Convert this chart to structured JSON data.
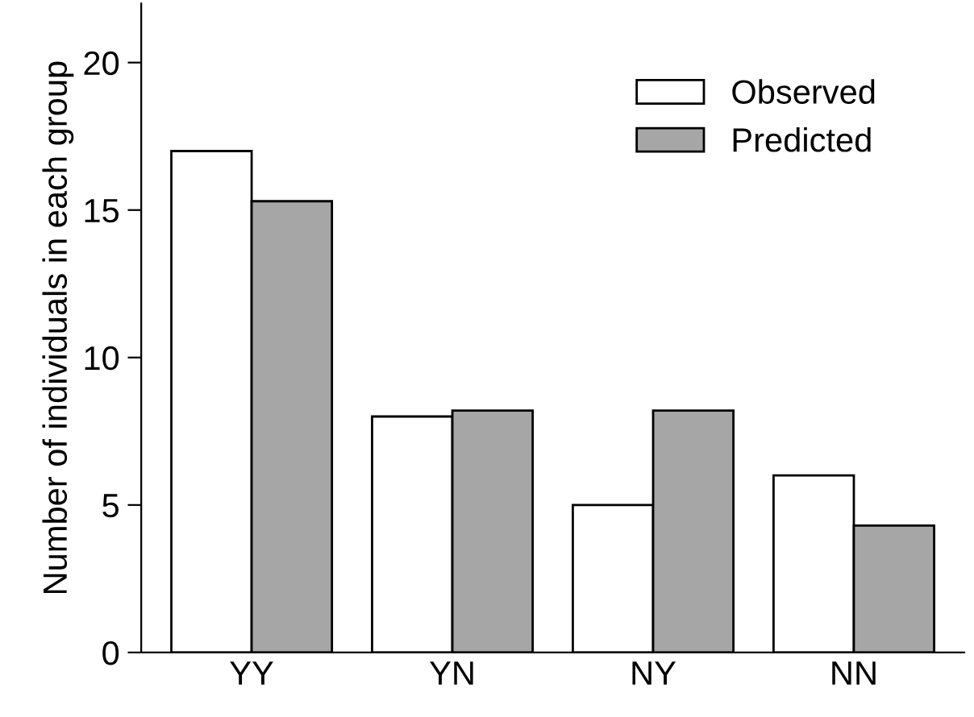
{
  "chart_data": {
    "type": "bar",
    "ylabel": "Number of individuals in each group",
    "categories": [
      "YY",
      "YN",
      "NY",
      "NN"
    ],
    "series": [
      {
        "name": "Observed",
        "color": "#ffffff",
        "values": [
          17,
          8,
          5,
          6
        ]
      },
      {
        "name": "Predicted",
        "color": "#a6a6a6",
        "values": [
          15.3,
          8.2,
          8.2,
          4.3
        ]
      }
    ],
    "ylim": [
      0,
      22
    ],
    "yticks": [
      0,
      5,
      10,
      15,
      20
    ],
    "grid": false,
    "legend": "top right"
  }
}
